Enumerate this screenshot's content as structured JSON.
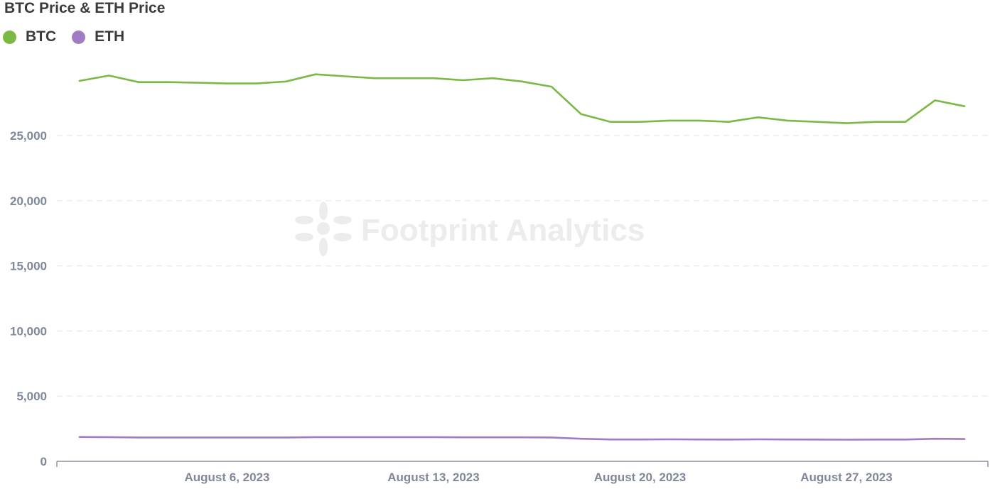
{
  "chart_data": {
    "type": "line",
    "title": "BTC Price & ETH Price",
    "xlabel": "",
    "ylabel": "",
    "ylim": [
      0,
      30000
    ],
    "yticks": [
      0,
      5000,
      10000,
      15000,
      20000,
      25000
    ],
    "yticklabels": [
      "0",
      "5,000",
      "10,000",
      "15,000",
      "20,000",
      "25,000"
    ],
    "x": [
      "2023-08-01",
      "2023-08-02",
      "2023-08-03",
      "2023-08-04",
      "2023-08-05",
      "2023-08-06",
      "2023-08-07",
      "2023-08-08",
      "2023-08-09",
      "2023-08-10",
      "2023-08-11",
      "2023-08-12",
      "2023-08-13",
      "2023-08-14",
      "2023-08-15",
      "2023-08-16",
      "2023-08-17",
      "2023-08-18",
      "2023-08-19",
      "2023-08-20",
      "2023-08-21",
      "2023-08-22",
      "2023-08-23",
      "2023-08-24",
      "2023-08-25",
      "2023-08-26",
      "2023-08-27",
      "2023-08-28",
      "2023-08-29",
      "2023-08-30",
      "2023-08-31"
    ],
    "xticks": [
      "2023-08-06",
      "2023-08-13",
      "2023-08-20",
      "2023-08-27"
    ],
    "xticklabels": [
      "August 6, 2023",
      "August 13, 2023",
      "August 20, 2023",
      "August 27, 2023"
    ],
    "legend_position": "top-left",
    "grid": "horizontal-dashed",
    "series": [
      {
        "name": "BTC",
        "color": "#7ab944",
        "values": [
          29200,
          29600,
          29100,
          29100,
          29050,
          29000,
          29000,
          29150,
          29700,
          29550,
          29400,
          29400,
          29400,
          29250,
          29400,
          29150,
          28750,
          26650,
          26050,
          26050,
          26150,
          26150,
          26050,
          26400,
          26150,
          26050,
          25950,
          26050,
          26050,
          27700,
          27250
        ]
      },
      {
        "name": "ETH",
        "color": "#a07cc5",
        "values": [
          1870,
          1860,
          1830,
          1830,
          1830,
          1830,
          1830,
          1830,
          1860,
          1860,
          1860,
          1860,
          1860,
          1840,
          1840,
          1840,
          1830,
          1730,
          1680,
          1680,
          1690,
          1680,
          1670,
          1690,
          1680,
          1670,
          1660,
          1670,
          1670,
          1730,
          1710
        ]
      }
    ],
    "watermark": "Footprint Analytics"
  }
}
